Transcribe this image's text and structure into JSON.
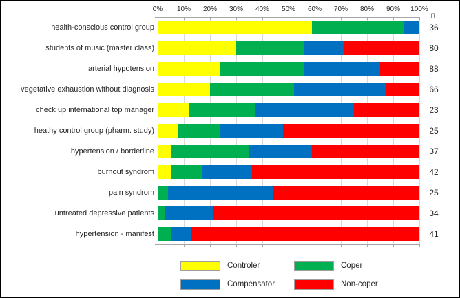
{
  "chart_data": {
    "type": "bar",
    "variant": "horizontal-stacked-100pct",
    "title": "",
    "xlabel": "",
    "ylabel": "",
    "xlim": [
      0,
      100
    ],
    "unit": "%",
    "grid": true,
    "x_ticks": [
      "0%",
      "10%",
      "20%",
      "30%",
      "40%",
      "50%",
      "60%",
      "70%",
      "80%",
      "90%",
      "100%"
    ],
    "n_column_header": "n",
    "categories": [
      "health-conscious control group",
      "students of music (master class)",
      "arterial hypotension",
      "vegetative exhaustion without diagnosis",
      "check up international top manager",
      "heathy control group (pharm. study)",
      "hypertension / borderline",
      "burnout syndrom",
      "pain syndrom",
      "untreated depressive patients",
      "hypertension - manifest"
    ],
    "n_values": [
      36,
      80,
      88,
      66,
      23,
      25,
      37,
      42,
      25,
      34,
      41
    ],
    "series": [
      {
        "name": "Controler",
        "color": "#FFFF00",
        "values": [
          59,
          30,
          24,
          20,
          12,
          8,
          5,
          5,
          0,
          0,
          0
        ]
      },
      {
        "name": "Coper",
        "color": "#00B050",
        "values": [
          35,
          26,
          32,
          32,
          25,
          16,
          30,
          12,
          4,
          3,
          5
        ]
      },
      {
        "name": "Compensator",
        "color": "#0070C0",
        "values": [
          6,
          15,
          29,
          35,
          38,
          24,
          24,
          19,
          40,
          18,
          8
        ]
      },
      {
        "name": "Non-coper",
        "color": "#FF0000",
        "values": [
          0,
          29,
          15,
          13,
          25,
          52,
          41,
          64,
          56,
          79,
          87
        ]
      }
    ],
    "legend": {
      "position": "bottom",
      "entries": [
        {
          "label": "Controler",
          "color": "#FFFF00"
        },
        {
          "label": "Coper",
          "color": "#00B050"
        },
        {
          "label": "Compensator",
          "color": "#0070C0"
        },
        {
          "label": "Non-coper",
          "color": "#FF0000"
        }
      ]
    }
  }
}
